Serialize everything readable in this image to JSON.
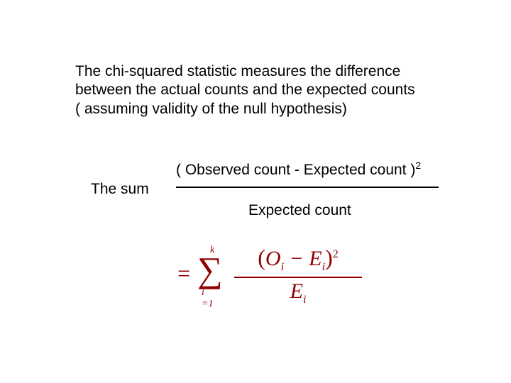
{
  "intro": "The chi-squared statistic measures the difference between the actual counts and the expected counts ( assuming validity of the null hypothesis)",
  "sum_label": "The sum",
  "text_fraction": {
    "numerator_prefix": "( Observed count - Expected count )",
    "numerator_power": "2",
    "denominator": "Expected count"
  },
  "formula": {
    "equals": "=",
    "sigma": "∑",
    "upper_limit": "k",
    "lower_limit": "i =1",
    "num_open": "(",
    "num_O": "O",
    "num_O_sub": "i",
    "num_minus": " − ",
    "num_E": "E",
    "num_E_sub": "i",
    "num_close": ")",
    "num_power": "2",
    "den_E": "E",
    "den_E_sub": "i"
  },
  "colors": {
    "text": "#000000",
    "formula": "#900000",
    "background": "#ffffff"
  },
  "typography": {
    "body_font": "Arial",
    "formula_font": "Times New Roman",
    "body_size_pt": 16,
    "formula_main_size_pt": 24
  }
}
